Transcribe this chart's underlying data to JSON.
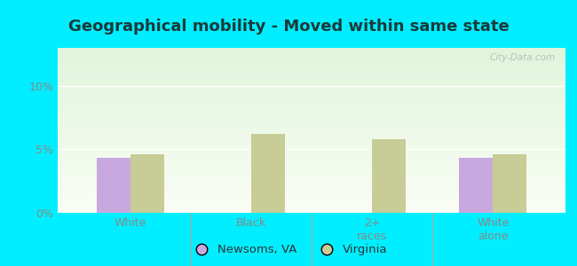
{
  "title": "Geographical mobility - Moved within same state",
  "categories": [
    "White",
    "Black",
    "2+\nraces",
    "White\nalone"
  ],
  "newsoms_values": [
    4.3,
    0.0,
    0.0,
    4.3
  ],
  "virginia_values": [
    4.6,
    6.2,
    5.8,
    4.6
  ],
  "newsoms_color": "#c9a8e0",
  "virginia_color": "#c8cc96",
  "background_outer": "#00eeff",
  "ylim": [
    0,
    13
  ],
  "yticks": [
    0,
    5,
    10
  ],
  "ytick_labels": [
    "0%",
    "5%",
    "10%"
  ],
  "bar_width": 0.28,
  "legend_newsoms": "Newsoms, VA",
  "legend_virginia": "Virginia",
  "title_fontsize": 13,
  "tick_fontsize": 9,
  "legend_fontsize": 9.5,
  "title_color": "#1a3a3a",
  "tick_color": "#888888"
}
